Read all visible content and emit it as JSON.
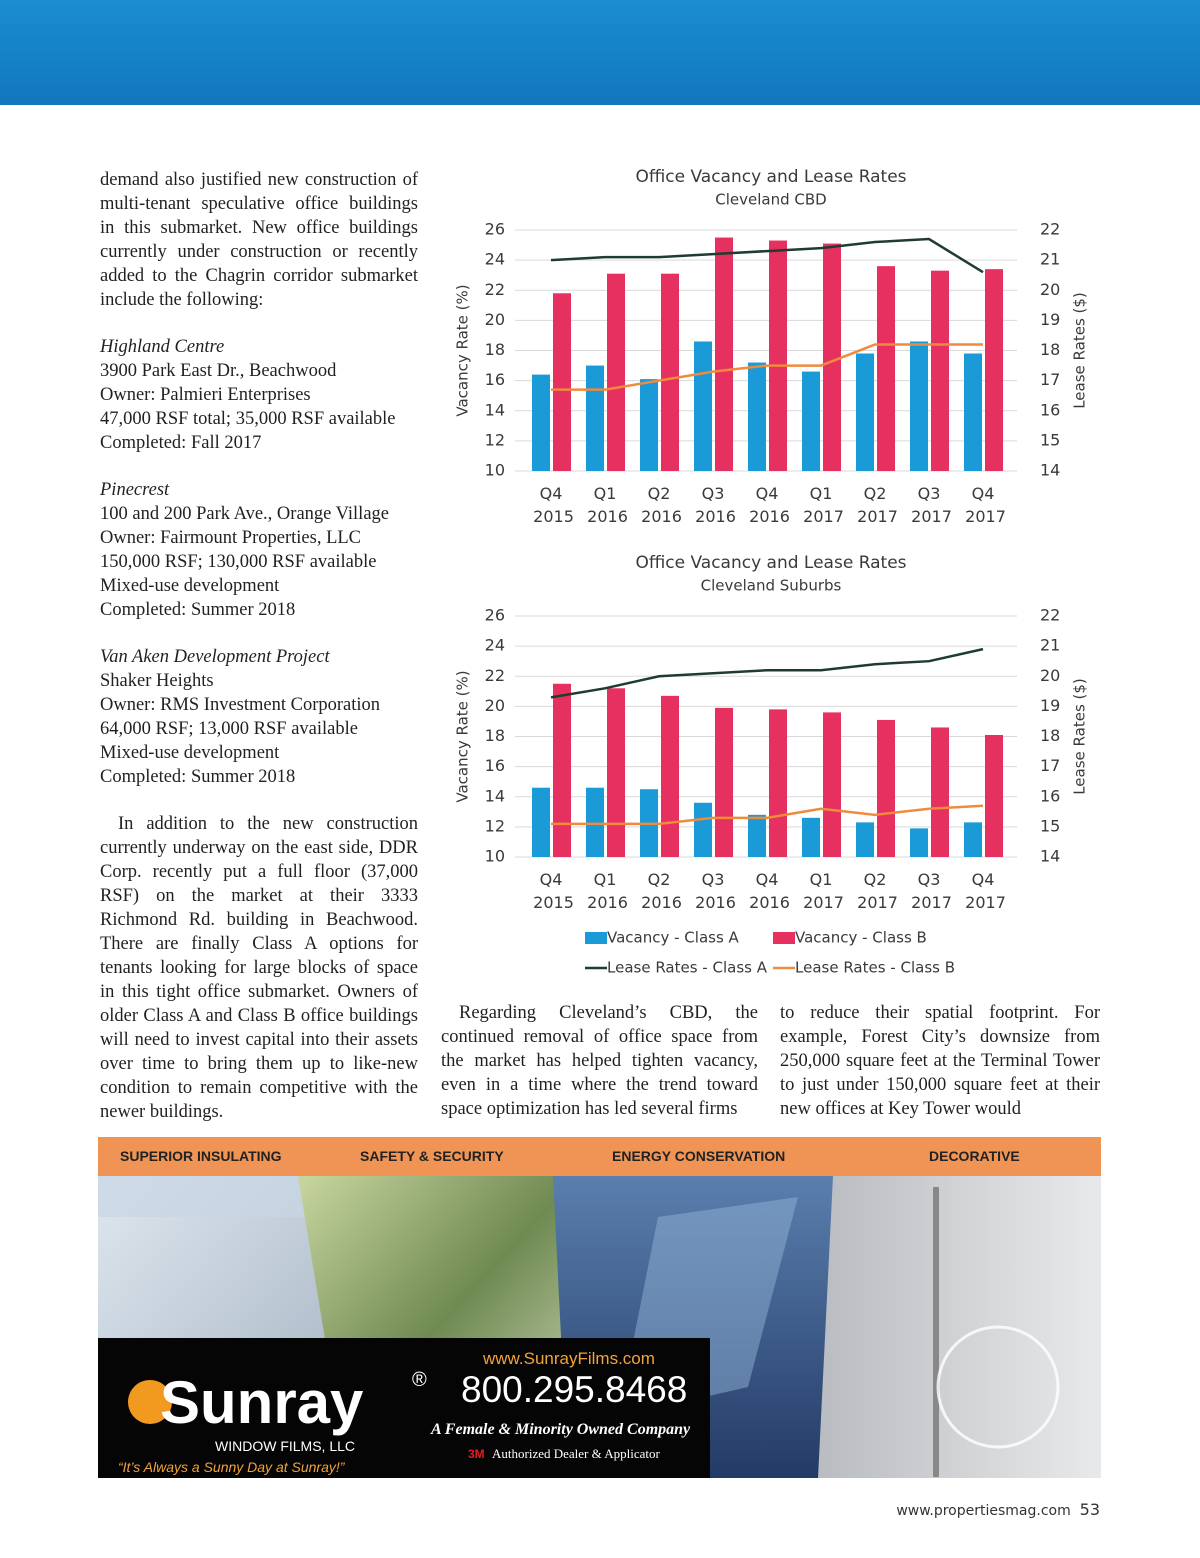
{
  "left_column": {
    "intro": "demand also justified new construction of multi-tenant speculative office buildings in this submarket. New office buildings currently under construction or recently added to the Chagrin corridor submarket include the following:",
    "projects": [
      {
        "name": "Highland Centre",
        "lines": [
          "3900 Park East Dr., Beachwood",
          "Owner: Palmieri Enterprises",
          "47,000 RSF total; 35,000 RSF available",
          "Completed: Fall 2017"
        ]
      },
      {
        "name": "Pinecrest",
        "lines": [
          "100 and 200 Park Ave., Orange Village",
          "Owner: Fairmount Properties, LLC",
          "150,000 RSF; 130,000 RSF available",
          "Mixed-use development",
          "Completed: Summer 2018"
        ]
      },
      {
        "name": "Van Aken Development Project",
        "lines": [
          "Shaker Heights",
          "Owner: RMS Investment Corporation",
          "64,000 RSF; 13,000 RSF available",
          "Mixed-use development",
          "Completed: Summer 2018"
        ]
      }
    ],
    "closing": "In addition to the new construction currently underway on the east side, DDR Corp. recently put a full floor (37,000 RSF) on the market at their 3333 Richmond Rd. building in Beachwood. There are finally Class A options for tenants looking for large blocks of space in this tight office submarket. Owners of older Class A and Class B office buildings will need to invest capital into their assets over time to bring them up to like-new condition to remain competitive with the newer buildings."
  },
  "bottom_columns": [
    "Regarding Cleveland’s CBD, the continued removal of office space from the market has helped tighten vacancy, even in a time where the trend toward space optimization has led several firms",
    "to reduce their spatial footprint. For example, Forest City’s downsize from 250,000 square feet at the Terminal Tower to just under 150,000 square feet at their new offices at Key Tower would"
  ],
  "chart_data": [
    {
      "type": "combo",
      "title": "Office Vacancy and Lease Rates",
      "subtitle": "Cleveland CBD",
      "y_label": "Vacancy Rate (%)",
      "y2_label": "Lease Rates ($)",
      "categories": [
        "Q4 2015",
        "Q1 2016",
        "Q2 2016",
        "Q3 2016",
        "Q4 2016",
        "Q1 2017",
        "Q2 2017",
        "Q3 2017",
        "Q4 2017"
      ],
      "ylim": [
        10,
        26
      ],
      "yticks": [
        10,
        12,
        14,
        16,
        18,
        20,
        22,
        24,
        26
      ],
      "y2lim": [
        14,
        22
      ],
      "y2ticks": [
        14,
        15,
        16,
        17,
        18,
        19,
        20,
        21,
        22
      ],
      "grid": true,
      "legend": false,
      "series": [
        {
          "name": "Vacancy - Class A",
          "type": "bar",
          "color": "#1a9ad6",
          "values": [
            16.4,
            17.0,
            16.1,
            18.6,
            17.2,
            16.6,
            17.8,
            18.6,
            17.8
          ]
        },
        {
          "name": "Vacancy - Class B",
          "type": "bar",
          "color": "#e6305f",
          "values": [
            21.8,
            23.1,
            23.1,
            25.5,
            25.3,
            25.1,
            23.6,
            23.3,
            23.4
          ]
        },
        {
          "name": "Lease Rates - Class A",
          "type": "line",
          "axis": "y2",
          "color": "#1f3d2e",
          "values": [
            21.0,
            21.1,
            21.1,
            21.2,
            21.3,
            21.4,
            21.6,
            21.7,
            20.6
          ]
        },
        {
          "name": "Lease Rates - Class B",
          "type": "line",
          "axis": "y2",
          "color": "#f08a3c",
          "values": [
            16.7,
            16.7,
            17.0,
            17.3,
            17.5,
            17.5,
            18.2,
            18.2,
            18.2
          ]
        }
      ]
    },
    {
      "type": "combo",
      "title": "Office Vacancy and Lease Rates",
      "subtitle": "Cleveland Suburbs",
      "y_label": "Vacancy Rate (%)",
      "y2_label": "Lease Rates ($)",
      "categories": [
        "Q4 2015",
        "Q1 2016",
        "Q2 2016",
        "Q3 2016",
        "Q4 2016",
        "Q1 2017",
        "Q2 2017",
        "Q3 2017",
        "Q4 2017"
      ],
      "ylim": [
        10,
        26
      ],
      "yticks": [
        10,
        12,
        14,
        16,
        18,
        20,
        22,
        24,
        26
      ],
      "y2lim": [
        14,
        22
      ],
      "y2ticks": [
        14,
        15,
        16,
        17,
        18,
        19,
        20,
        21,
        22
      ],
      "grid": true,
      "legend": "bottom",
      "series": [
        {
          "name": "Vacancy - Class A",
          "type": "bar",
          "color": "#1a9ad6",
          "values": [
            14.6,
            14.6,
            14.5,
            13.6,
            12.8,
            12.6,
            12.3,
            11.9,
            12.3
          ]
        },
        {
          "name": "Vacancy - Class B",
          "type": "bar",
          "color": "#e6305f",
          "values": [
            21.5,
            21.2,
            20.7,
            19.9,
            19.8,
            19.6,
            19.1,
            18.6,
            18.1
          ]
        },
        {
          "name": "Lease Rates - Class A",
          "type": "line",
          "axis": "y2",
          "color": "#1f3d2e",
          "values": [
            19.3,
            19.6,
            20.0,
            20.1,
            20.2,
            20.2,
            20.4,
            20.5,
            20.9
          ]
        },
        {
          "name": "Lease Rates - Class B",
          "type": "line",
          "axis": "y2",
          "color": "#f08a3c",
          "values": [
            15.1,
            15.1,
            15.1,
            15.3,
            15.3,
            15.6,
            15.4,
            15.6,
            15.7
          ]
        }
      ]
    }
  ],
  "ad": {
    "features": [
      "SUPERIOR INSULATING",
      "SAFETY & SECURITY",
      "ENERGY CONSERVATION",
      "DECORATIVE"
    ],
    "brand": "Sunray",
    "registered": "®",
    "brand_sub": "WINDOW FILMS, LLC",
    "tagline": "“It’s Always a Sunny Day at Sunray!”",
    "url": "www.SunrayFilms.com",
    "phone": "800.295.8468",
    "owned": "A Female & Minority Owned Company",
    "logo_3m": "3M",
    "dealer": "Authorized Dealer & Applicator"
  },
  "footer": {
    "site": "www.propertiesmag.com",
    "page": "53"
  }
}
